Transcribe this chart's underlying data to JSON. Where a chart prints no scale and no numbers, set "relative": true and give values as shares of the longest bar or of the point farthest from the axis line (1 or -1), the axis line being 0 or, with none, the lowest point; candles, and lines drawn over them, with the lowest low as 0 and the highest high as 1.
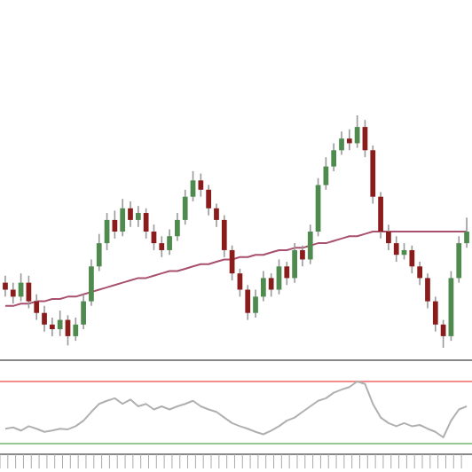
{
  "chart_data": [
    {
      "type": "candlestick",
      "relative": true,
      "categories": [
        null,
        null,
        null,
        null,
        null,
        null,
        null,
        null,
        null,
        null,
        null,
        null,
        null,
        null,
        null,
        null,
        null,
        null,
        null,
        null,
        null,
        null,
        null,
        null,
        null,
        null,
        null,
        null,
        null,
        null,
        null,
        null,
        null,
        null,
        null,
        null,
        null,
        null,
        null,
        null,
        null,
        null,
        null,
        null,
        null,
        null,
        null,
        null,
        null,
        null,
        null,
        null,
        null,
        null,
        null,
        null,
        null,
        null,
        null,
        null
      ],
      "ohlc": [
        [
          0.28,
          0.31,
          0.22,
          0.25
        ],
        [
          0.25,
          0.28,
          0.19,
          0.22
        ],
        [
          0.22,
          0.32,
          0.2,
          0.28
        ],
        [
          0.28,
          0.31,
          0.17,
          0.2
        ],
        [
          0.2,
          0.23,
          0.12,
          0.15
        ],
        [
          0.15,
          0.18,
          0.07,
          0.1
        ],
        [
          0.1,
          0.13,
          0.05,
          0.08
        ],
        [
          0.08,
          0.16,
          0.05,
          0.12
        ],
        [
          0.12,
          0.14,
          0.01,
          0.05
        ],
        [
          0.05,
          0.13,
          0.03,
          0.1
        ],
        [
          0.1,
          0.23,
          0.08,
          0.2
        ],
        [
          0.2,
          0.38,
          0.18,
          0.35
        ],
        [
          0.35,
          0.49,
          0.33,
          0.45
        ],
        [
          0.45,
          0.58,
          0.42,
          0.55
        ],
        [
          0.55,
          0.59,
          0.47,
          0.5
        ],
        [
          0.5,
          0.64,
          0.48,
          0.6
        ],
        [
          0.6,
          0.63,
          0.52,
          0.55
        ],
        [
          0.55,
          0.61,
          0.52,
          0.58
        ],
        [
          0.58,
          0.6,
          0.47,
          0.5
        ],
        [
          0.5,
          0.53,
          0.42,
          0.45
        ],
        [
          0.45,
          0.48,
          0.39,
          0.42
        ],
        [
          0.42,
          0.51,
          0.4,
          0.48
        ],
        [
          0.48,
          0.58,
          0.46,
          0.55
        ],
        [
          0.55,
          0.68,
          0.53,
          0.65
        ],
        [
          0.65,
          0.76,
          0.63,
          0.72
        ],
        [
          0.72,
          0.75,
          0.65,
          0.68
        ],
        [
          0.68,
          0.7,
          0.57,
          0.6
        ],
        [
          0.6,
          0.62,
          0.52,
          0.55
        ],
        [
          0.55,
          0.57,
          0.39,
          0.42
        ],
        [
          0.42,
          0.44,
          0.29,
          0.32
        ],
        [
          0.32,
          0.34,
          0.22,
          0.25
        ],
        [
          0.25,
          0.27,
          0.12,
          0.15
        ],
        [
          0.15,
          0.25,
          0.13,
          0.22
        ],
        [
          0.22,
          0.33,
          0.2,
          0.3
        ],
        [
          0.3,
          0.32,
          0.22,
          0.25
        ],
        [
          0.25,
          0.38,
          0.23,
          0.35
        ],
        [
          0.35,
          0.37,
          0.27,
          0.3
        ],
        [
          0.3,
          0.45,
          0.28,
          0.42
        ],
        [
          0.42,
          0.44,
          0.35,
          0.38
        ],
        [
          0.38,
          0.53,
          0.36,
          0.5
        ],
        [
          0.5,
          0.73,
          0.48,
          0.7
        ],
        [
          0.7,
          0.82,
          0.68,
          0.78
        ],
        [
          0.78,
          0.88,
          0.76,
          0.85
        ],
        [
          0.85,
          0.93,
          0.83,
          0.9
        ],
        [
          0.9,
          0.94,
          0.85,
          0.88
        ],
        [
          0.88,
          1,
          0.86,
          0.95
        ],
        [
          0.95,
          0.98,
          0.82,
          0.85
        ],
        [
          0.85,
          0.87,
          0.62,
          0.65
        ],
        [
          0.65,
          0.67,
          0.47,
          0.5
        ],
        [
          0.5,
          0.53,
          0.42,
          0.45
        ],
        [
          0.45,
          0.48,
          0.37,
          0.4
        ],
        [
          0.4,
          0.45,
          0.38,
          0.42
        ],
        [
          0.42,
          0.44,
          0.32,
          0.35
        ],
        [
          0.35,
          0.37,
          0.27,
          0.3
        ],
        [
          0.3,
          0.32,
          0.17,
          0.2
        ],
        [
          0.2,
          0.22,
          0.07,
          0.1
        ],
        [
          0.1,
          0.12,
          0,
          0.05
        ],
        [
          0.05,
          0.33,
          0.03,
          0.3
        ],
        [
          0.3,
          0.48,
          0.28,
          0.45
        ],
        [
          0.45,
          0.56,
          0.43,
          0.5
        ]
      ],
      "series": [
        {
          "type": "line",
          "color": "#a8506e",
          "values": [
            0.18,
            0.18,
            0.19,
            0.19,
            0.2,
            0.2,
            0.21,
            0.21,
            0.22,
            0.22,
            0.23,
            0.24,
            0.25,
            0.26,
            0.27,
            0.28,
            0.29,
            0.3,
            0.3,
            0.31,
            0.32,
            0.33,
            0.33,
            0.34,
            0.35,
            0.36,
            0.36,
            0.37,
            0.38,
            0.38,
            0.39,
            0.39,
            0.4,
            0.4,
            0.41,
            0.42,
            0.42,
            0.43,
            0.43,
            0.44,
            0.45,
            0.45,
            0.46,
            0.47,
            0.48,
            0.48,
            0.49,
            0.5,
            0.5,
            0.5,
            0.5,
            0.5,
            0.5,
            0.5,
            0.5,
            0.5,
            0.5,
            0.5,
            0.5,
            0.5
          ]
        }
      ]
    },
    {
      "type": "line",
      "relative": true,
      "categories": [
        null,
        null,
        null,
        null,
        null,
        null,
        null,
        null,
        null,
        null,
        null,
        null,
        null,
        null,
        null,
        null,
        null,
        null,
        null,
        null,
        null,
        null,
        null,
        null,
        null,
        null,
        null,
        null,
        null,
        null,
        null,
        null,
        null,
        null,
        null,
        null,
        null,
        null,
        null,
        null,
        null,
        null,
        null,
        null,
        null,
        null,
        null,
        null,
        null,
        null,
        null,
        null,
        null,
        null,
        null,
        null,
        null,
        null,
        null,
        null
      ],
      "series": [
        {
          "color": "#b0b0b0",
          "values": [
            0.24,
            0.26,
            0.21,
            0.28,
            0.24,
            0.19,
            0.21,
            0.24,
            0.23,
            0.28,
            0.37,
            0.51,
            0.64,
            0.69,
            0.73,
            0.64,
            0.71,
            0.6,
            0.64,
            0.55,
            0.6,
            0.55,
            0.6,
            0.64,
            0.69,
            0.6,
            0.55,
            0.51,
            0.42,
            0.33,
            0.28,
            0.24,
            0.19,
            0.15,
            0.21,
            0.28,
            0.37,
            0.42,
            0.51,
            0.6,
            0.69,
            0.73,
            0.82,
            0.87,
            0.91,
            1,
            0.96,
            0.64,
            0.42,
            0.33,
            0.28,
            0.33,
            0.28,
            0.3,
            0.24,
            0.19,
            0.1,
            0.37,
            0.55,
            0.6
          ]
        }
      ],
      "ref_lines": [
        {
          "axis": "y",
          "value": 1,
          "color": "#f08c8c"
        },
        {
          "axis": "y",
          "value": 0,
          "color": "#94c894"
        }
      ]
    }
  ]
}
